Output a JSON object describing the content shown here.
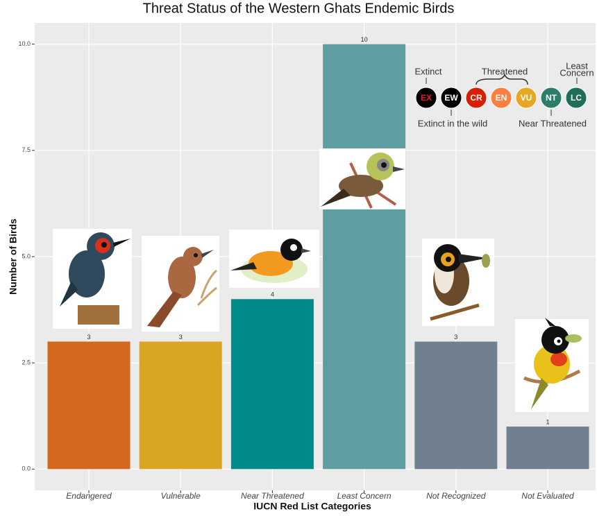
{
  "chart_data": {
    "type": "bar",
    "title": "Threat Status of the Western Ghats Endemic Birds",
    "x_label": "IUCN Red List Categories",
    "y_label": "Number of Birds",
    "categories": [
      "Endangered",
      "Vulnerable",
      "Near Threatened",
      "Least Concern",
      "Not Recognized",
      "Not Evaluated"
    ],
    "values": [
      3,
      3,
      4,
      10,
      3,
      1
    ],
    "colors": [
      "#d2691e",
      "#daa520",
      "#008b8b",
      "#5f9ea0",
      "#708090",
      "#708090"
    ],
    "ylim": [
      -0.5,
      10.5
    ],
    "yticks": [
      {
        "value": 0,
        "label": "0.0"
      },
      {
        "value": 2.5,
        "label": "2.5"
      },
      {
        "value": 5,
        "label": "5.0"
      },
      {
        "value": 7.5,
        "label": "7.5"
      },
      {
        "value": 10,
        "label": "10.0"
      }
    ],
    "grid": true,
    "iucn_legend": {
      "badges": [
        {
          "code": "EX",
          "color": "#000000",
          "text_color": "#ed1c24"
        },
        {
          "code": "EW",
          "color": "#000000",
          "text_color": "#ffffff"
        },
        {
          "code": "CR",
          "color": "#d81e05",
          "text_color": "#ffffff"
        },
        {
          "code": "EN",
          "color": "#fc7f3f",
          "text_color": "#ffffff"
        },
        {
          "code": "VU",
          "color": "#e8a720",
          "text_color": "#ffffff"
        },
        {
          "code": "NT",
          "color": "#2e7d6b",
          "text_color": "#ffffff"
        },
        {
          "code": "LC",
          "color": "#1f6e5a",
          "text_color": "#ffffff"
        }
      ],
      "extinct": "Extinct",
      "threatened": "Threatened",
      "least_concern": [
        "Least",
        "Concern"
      ],
      "extinct_in_wild": "Extinct in the wild",
      "near_threatened": "Near Threatened"
    }
  }
}
